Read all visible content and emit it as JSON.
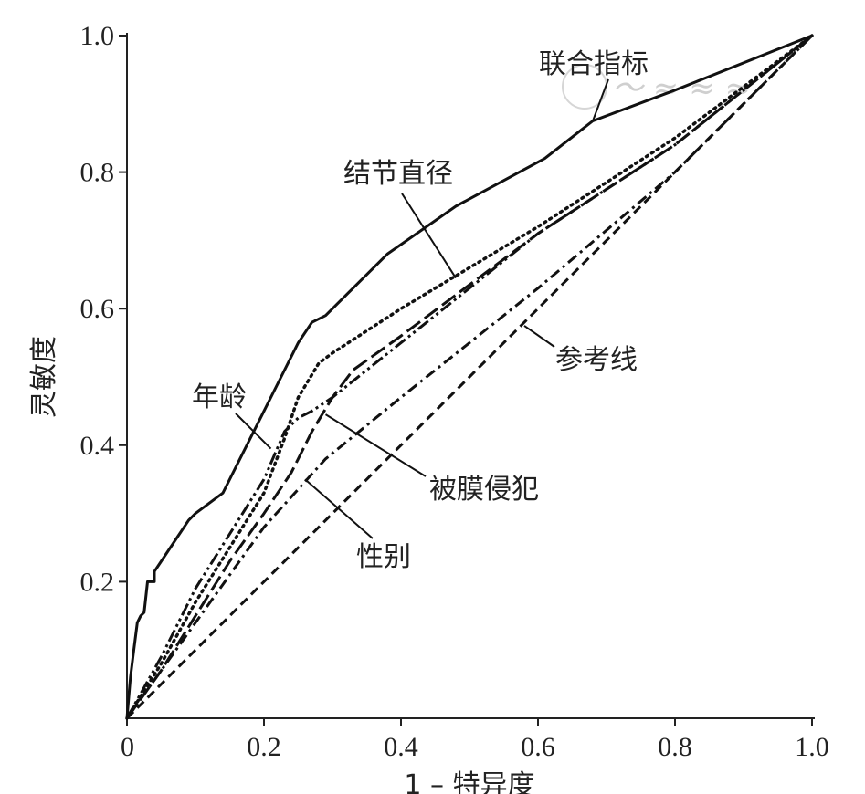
{
  "chart_data": {
    "type": "line",
    "title": "",
    "xlabel": "1 – 特异度",
    "ylabel": "灵敏度",
    "xlim": [
      0,
      1.0
    ],
    "ylim": [
      0,
      1.0
    ],
    "x_ticks": [
      "0",
      "0.2",
      "0.4",
      "0.6",
      "0.8",
      "1.0"
    ],
    "y_ticks": [
      "0.2",
      "0.4",
      "0.6",
      "0.8",
      "1.0"
    ],
    "grid": false,
    "legend": "none (direct annotations)",
    "series": [
      {
        "name": "联合指标",
        "style": "solid",
        "x": [
          0,
          0.005,
          0.01,
          0.015,
          0.02,
          0.025,
          0.03,
          0.04,
          0.04,
          0.05,
          0.07,
          0.09,
          0.1,
          0.14,
          0.16,
          0.18,
          0.2,
          0.22,
          0.25,
          0.27,
          0.29,
          0.33,
          0.38,
          0.48,
          0.61,
          0.68,
          0.8,
          1.0
        ],
        "y": [
          0,
          0.06,
          0.1,
          0.14,
          0.15,
          0.155,
          0.2,
          0.2,
          0.215,
          0.23,
          0.26,
          0.29,
          0.3,
          0.33,
          0.37,
          0.41,
          0.45,
          0.49,
          0.55,
          0.58,
          0.59,
          0.63,
          0.68,
          0.75,
          0.82,
          0.875,
          0.92,
          1.0
        ]
      },
      {
        "name": "结节直径",
        "style": "dotted",
        "x": [
          0,
          0.05,
          0.1,
          0.15,
          0.2,
          0.23,
          0.25,
          0.28,
          0.3,
          0.4,
          0.6,
          0.8,
          1.0
        ],
        "y": [
          0,
          0.08,
          0.17,
          0.25,
          0.33,
          0.41,
          0.47,
          0.52,
          0.535,
          0.6,
          0.72,
          0.85,
          1.0
        ]
      },
      {
        "name": "年龄",
        "style": "dash-dot-dot",
        "x": [
          0,
          0.05,
          0.1,
          0.15,
          0.2,
          0.23,
          0.25,
          0.27,
          0.3,
          0.4,
          0.6,
          0.8,
          1.0
        ],
        "y": [
          0,
          0.09,
          0.19,
          0.27,
          0.35,
          0.42,
          0.44,
          0.45,
          0.47,
          0.55,
          0.71,
          0.84,
          1.0
        ]
      },
      {
        "name": "被膜侵犯",
        "style": "long-dash",
        "x": [
          0,
          0.05,
          0.1,
          0.15,
          0.2,
          0.24,
          0.27,
          0.3,
          0.33,
          0.4,
          0.6,
          0.8,
          1.0
        ],
        "y": [
          0,
          0.07,
          0.15,
          0.23,
          0.3,
          0.36,
          0.42,
          0.47,
          0.51,
          0.56,
          0.71,
          0.84,
          1.0
        ]
      },
      {
        "name": "性别",
        "style": "dash-dot",
        "x": [
          0,
          0.1,
          0.2,
          0.29,
          0.4,
          0.6,
          0.8,
          1.0
        ],
        "y": [
          0,
          0.14,
          0.28,
          0.38,
          0.47,
          0.63,
          0.8,
          1.0
        ]
      },
      {
        "name": "参考线",
        "style": "dashed",
        "x": [
          0,
          1.0
        ],
        "y": [
          0,
          1.0
        ]
      }
    ],
    "annotations": [
      {
        "text": "联合指标",
        "target_x": 0.68,
        "target_y": 0.875
      },
      {
        "text": "结节直径",
        "target_x": 0.48,
        "target_y": 0.645
      },
      {
        "text": "年龄",
        "target_x": 0.21,
        "target_y": 0.395
      },
      {
        "text": "被膜侵犯",
        "target_x": 0.29,
        "target_y": 0.445
      },
      {
        "text": "性别",
        "target_x": 0.26,
        "target_y": 0.35
      },
      {
        "text": "参考线",
        "target_x": 0.58,
        "target_y": 0.575
      }
    ]
  }
}
